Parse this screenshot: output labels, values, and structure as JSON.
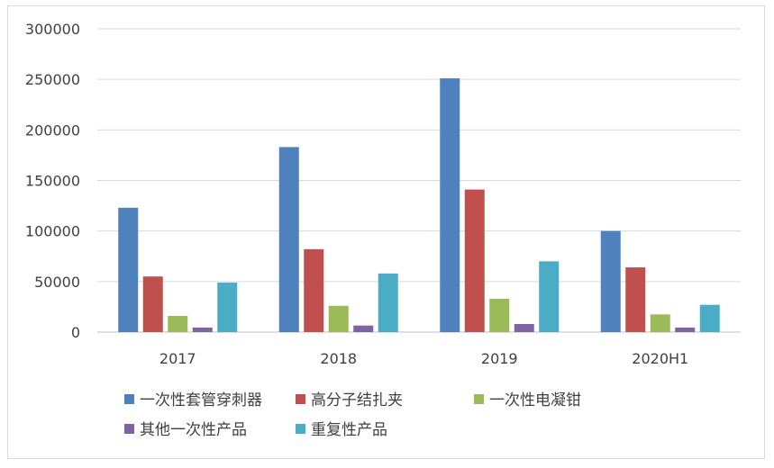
{
  "chart_data": {
    "type": "bar",
    "title": "",
    "xlabel": "",
    "ylabel": "",
    "categories": [
      "2017",
      "2018",
      "2019",
      "2020H1"
    ],
    "ylim": [
      0,
      300000
    ],
    "yticks": [
      0,
      50000,
      100000,
      150000,
      200000,
      250000,
      300000
    ],
    "grid": true,
    "legend_position": "bottom",
    "series": [
      {
        "name": "一次性套管穿刺器",
        "color": "#4f81bd",
        "values": [
          123000,
          183000,
          251000,
          100000
        ]
      },
      {
        "name": "高分子结扎夹",
        "color": "#c0504d",
        "values": [
          55000,
          82000,
          141000,
          64000
        ]
      },
      {
        "name": "一次性电凝钳",
        "color": "#9bbb59",
        "values": [
          16000,
          26000,
          33000,
          17500
        ]
      },
      {
        "name": "其他一次性产品",
        "color": "#8064a2",
        "values": [
          4500,
          6500,
          8000,
          4500
        ]
      },
      {
        "name": "重复性产品",
        "color": "#4bacc6",
        "values": [
          49000,
          58000,
          70000,
          27000
        ]
      }
    ]
  }
}
